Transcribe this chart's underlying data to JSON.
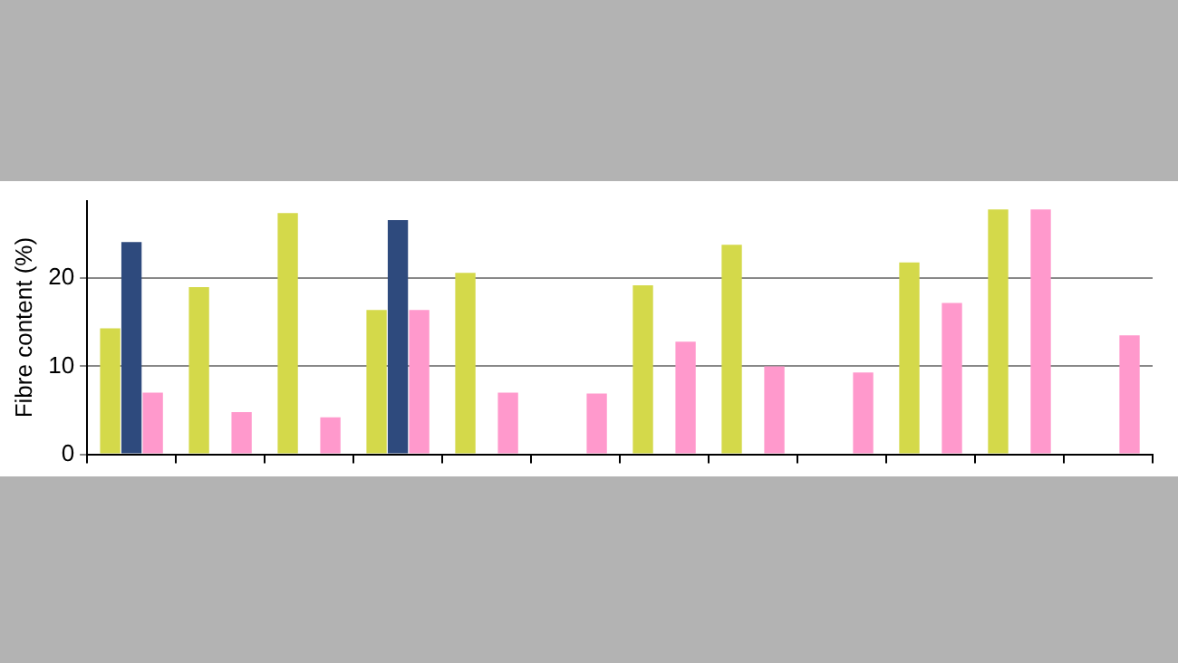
{
  "chart_data": {
    "type": "bar",
    "ylabel": "Fibre content (%)",
    "categories": [
      null,
      null,
      null,
      null,
      null,
      null,
      null,
      null,
      null,
      null,
      null,
      null
    ],
    "series": [
      {
        "color": "#d4d94a",
        "values": [
          14.3,
          19.0,
          27.4,
          16.4,
          20.6,
          null,
          19.2,
          23.8,
          null,
          21.8,
          27.8,
          null
        ]
      },
      {
        "color": "#2e4a7d",
        "values": [
          24.1,
          null,
          null,
          26.6,
          null,
          null,
          null,
          null,
          null,
          null,
          null,
          null
        ]
      },
      {
        "color": "#ff99cc",
        "values": [
          7.0,
          4.8,
          4.2,
          16.4,
          7.0,
          6.9,
          12.8,
          10.0,
          9.3,
          17.2,
          27.8,
          13.5
        ]
      }
    ],
    "ylim": [
      0,
      28.8
    ],
    "yticks": [
      0,
      10,
      20
    ],
    "grid": "y",
    "legend": false
  }
}
